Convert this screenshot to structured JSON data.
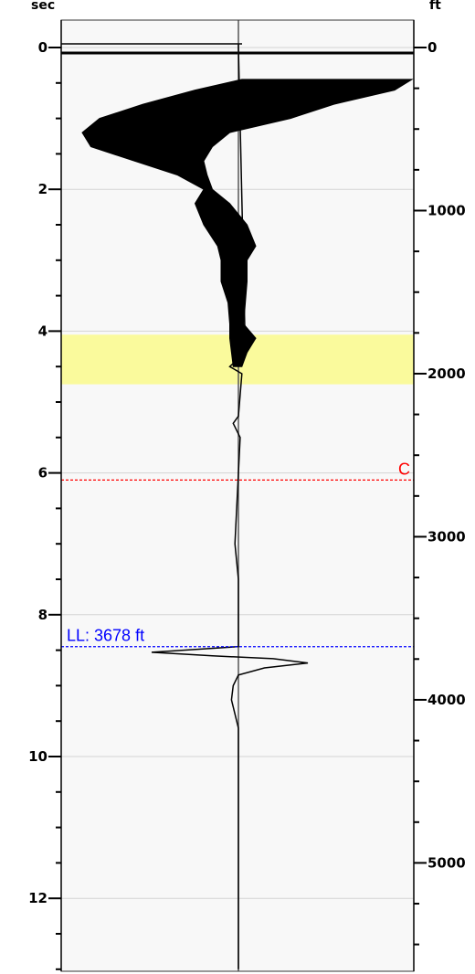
{
  "chart_data": {
    "type": "line",
    "left_axis": {
      "label": "sec",
      "range": [
        -0.1,
        13.1
      ],
      "ticks": [
        0,
        2,
        4,
        6,
        8,
        10,
        12
      ],
      "tick_labels": [
        "0",
        "2",
        "4",
        "6",
        "8",
        "10",
        "12"
      ],
      "minor_step": 0.5
    },
    "right_axis": {
      "label": "ft",
      "ticks": [
        0,
        1000,
        2000,
        3000,
        4000,
        5000
      ],
      "tick_labels": [
        "0",
        "1000",
        "2000",
        "3000",
        "4000",
        "5000"
      ],
      "minor_step": 250,
      "depth_time_pairs": [
        [
          0,
          0
        ],
        [
          1000,
          2.3
        ],
        [
          2000,
          4.6
        ],
        [
          3000,
          6.9
        ],
        [
          4000,
          9.2
        ],
        [
          5000,
          11.5
        ]
      ]
    },
    "grid": true,
    "highlight_band": {
      "from": 4.05,
      "to": 4.75,
      "color": "#fafa9c"
    },
    "markers": [
      {
        "label": "C",
        "y": 6.1,
        "color": "#ff0000",
        "label_side": "right"
      },
      {
        "label": "LL: 3678 ft",
        "y": 8.45,
        "color": "#0000ff",
        "label_side": "left"
      }
    ],
    "trace": {
      "name": "",
      "color": "#000000",
      "x_range": [
        -1,
        1
      ],
      "centerline_x": 0,
      "noise_envelope": [
        [
          0.45,
          0.02,
          1.0
        ],
        [
          0.6,
          -0.25,
          0.9
        ],
        [
          0.8,
          -0.55,
          0.55
        ],
        [
          1.0,
          -0.8,
          0.3
        ],
        [
          1.2,
          -0.9,
          -0.05
        ],
        [
          1.4,
          -0.85,
          -0.15
        ],
        [
          1.6,
          -0.6,
          -0.2
        ],
        [
          1.8,
          -0.35,
          -0.18
        ],
        [
          2.0,
          -0.2,
          -0.15
        ],
        [
          2.2,
          -0.25,
          -0.05
        ],
        [
          2.5,
          -0.2,
          0.05
        ],
        [
          2.8,
          -0.12,
          0.1
        ],
        [
          3.0,
          -0.1,
          0.05
        ],
        [
          3.3,
          -0.1,
          0.05
        ],
        [
          3.6,
          -0.06,
          0.04
        ],
        [
          3.9,
          -0.05,
          0.03
        ],
        [
          4.1,
          -0.05,
          0.1
        ],
        [
          4.3,
          -0.04,
          0.05
        ],
        [
          4.5,
          -0.03,
          0.02
        ]
      ],
      "wiggle": [
        [
          -0.06,
          0.0
        ],
        [
          0.0,
          0.0
        ],
        [
          4.3,
          0.04
        ],
        [
          4.5,
          -0.05
        ],
        [
          4.6,
          0.02
        ],
        [
          5.2,
          0.0
        ],
        [
          5.3,
          -0.03
        ],
        [
          5.5,
          0.01
        ],
        [
          6.0,
          0.0
        ],
        [
          7.0,
          -0.02
        ],
        [
          7.5,
          0.0
        ],
        [
          8.45,
          0.0
        ],
        [
          8.53,
          -0.5
        ],
        [
          8.58,
          -0.15
        ],
        [
          8.62,
          0.2
        ],
        [
          8.68,
          0.4
        ],
        [
          8.75,
          0.15
        ],
        [
          8.85,
          0.0
        ],
        [
          9.0,
          -0.03
        ],
        [
          9.2,
          -0.04
        ],
        [
          9.4,
          -0.02
        ],
        [
          9.6,
          0.0
        ],
        [
          10.0,
          0.0
        ],
        [
          11.0,
          0.0
        ],
        [
          12.0,
          0.0
        ],
        [
          13.0,
          0.0
        ]
      ]
    }
  }
}
